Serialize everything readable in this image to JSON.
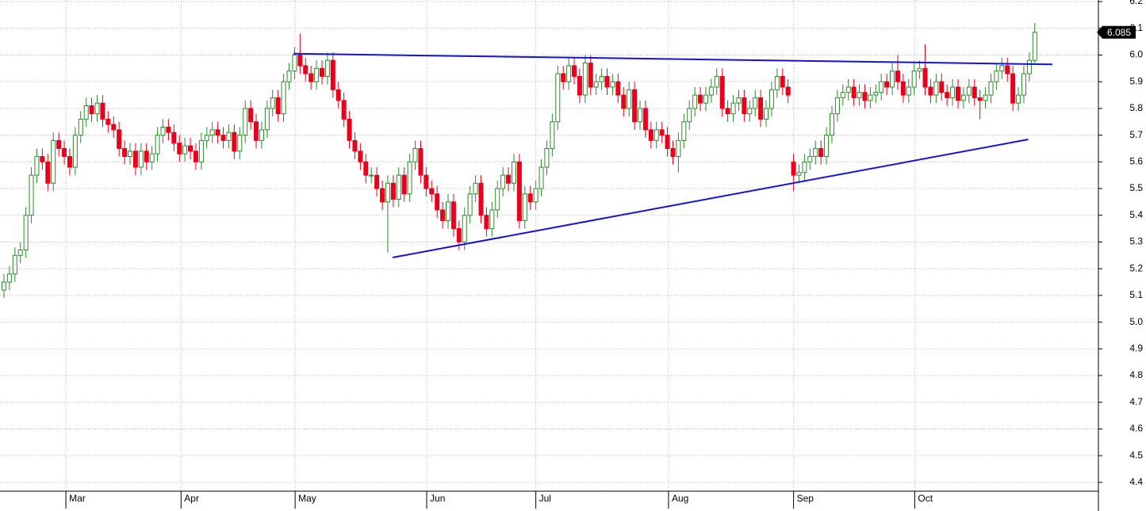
{
  "chart_data": {
    "type": "candlestick",
    "xlim": [
      -0.72,
      199.6
    ],
    "xticks": [
      {
        "value": 11.3,
        "label": "Mar"
      },
      {
        "value": 32.3,
        "label": "Apr"
      },
      {
        "value": 53.1,
        "label": "May"
      },
      {
        "value": 77.1,
        "label": "Jun"
      },
      {
        "value": 97.0,
        "label": "Jul"
      },
      {
        "value": 121.2,
        "label": "Aug"
      },
      {
        "value": 144.0,
        "label": "Sep"
      },
      {
        "value": 166.1,
        "label": "Oct"
      }
    ],
    "ylim": [
      4.367,
      6.206
    ],
    "yticks": [
      4.4,
      4.5,
      4.6,
      4.7,
      4.8,
      4.9,
      {
        "value": 5.0,
        "label": "5.0"
      },
      5.1,
      5.2,
      5.3,
      5.4,
      5.5,
      5.6,
      5.7,
      5.8,
      5.9,
      {
        "value": 6.0,
        "label": "6.0"
      },
      6.1,
      6.2
    ],
    "grid": true,
    "up_color": "#2a8a2a",
    "down_color": "#e8001c",
    "open": [
      5.12,
      5.15,
      5.18,
      5.25,
      5.27,
      5.4,
      5.55,
      5.62,
      5.6,
      5.52,
      5.68,
      5.65,
      5.62,
      5.58,
      5.7,
      5.76,
      5.81,
      5.78,
      5.82,
      5.76,
      5.74,
      5.72,
      5.65,
      5.62,
      5.64,
      5.58,
      5.64,
      5.6,
      5.63,
      5.7,
      5.73,
      5.71,
      5.67,
      5.63,
      5.66,
      5.64,
      5.6,
      5.68,
      5.7,
      5.72,
      5.7,
      5.68,
      5.71,
      5.64,
      5.7,
      5.8,
      5.75,
      5.68,
      5.72,
      5.8,
      5.84,
      5.78,
      5.9,
      5.94,
      6.0,
      5.96,
      5.93,
      5.9,
      5.95,
      5.92,
      5.98,
      5.87,
      5.83,
      5.76,
      5.68,
      5.64,
      5.6,
      5.55,
      5.55,
      5.5,
      5.45,
      5.52,
      5.46,
      5.55,
      5.48,
      5.6,
      5.65,
      5.55,
      5.5,
      5.48,
      5.42,
      5.38,
      5.45,
      5.35,
      5.3,
      5.4,
      5.48,
      5.52,
      5.4,
      5.35,
      5.42,
      5.5,
      5.55,
      5.52,
      5.6,
      5.38,
      5.48,
      5.45,
      5.5,
      5.58,
      5.65,
      5.75,
      5.93,
      5.9,
      5.96,
      5.92,
      5.85,
      5.97,
      5.88,
      5.9,
      5.92,
      5.88,
      5.9,
      5.85,
      5.8,
      5.87,
      5.75,
      5.8,
      5.72,
      5.68,
      5.72,
      5.7,
      5.65,
      5.62,
      5.68,
      5.75,
      5.8,
      5.85,
      5.82,
      5.85,
      5.88,
      5.92,
      5.8,
      5.78,
      5.82,
      5.84,
      5.78,
      5.8,
      5.84,
      5.76,
      5.8,
      5.87,
      5.92,
      5.88,
      5.6,
      5.55,
      5.56,
      5.6,
      5.62,
      5.65,
      5.62,
      5.7,
      5.78,
      5.84,
      5.86,
      5.88,
      5.84,
      5.86,
      5.83,
      5.85,
      5.86,
      5.9,
      5.88,
      5.94,
      5.9,
      5.85,
      5.88,
      5.94,
      5.95,
      5.88,
      5.85,
      5.9,
      5.86,
      5.84,
      5.88,
      5.83,
      5.85,
      5.88,
      5.84,
      5.83,
      5.85,
      5.9,
      5.94,
      5.96,
      5.93,
      5.82,
      5.85,
      5.93,
      5.98
    ],
    "high": [
      5.18,
      5.21,
      5.28,
      5.3,
      5.43,
      5.58,
      5.65,
      5.65,
      5.63,
      5.71,
      5.71,
      5.68,
      5.65,
      5.73,
      5.79,
      5.84,
      5.84,
      5.85,
      5.85,
      5.79,
      5.77,
      5.75,
      5.68,
      5.67,
      5.67,
      5.67,
      5.67,
      5.66,
      5.73,
      5.76,
      5.76,
      5.74,
      5.7,
      5.69,
      5.69,
      5.67,
      5.71,
      5.73,
      5.75,
      5.75,
      5.73,
      5.74,
      5.74,
      5.73,
      5.83,
      5.83,
      5.78,
      5.75,
      5.83,
      5.87,
      5.87,
      5.93,
      5.97,
      6.03,
      6.08,
      5.99,
      5.96,
      5.98,
      5.98,
      6.01,
      6.01,
      5.9,
      5.86,
      5.79,
      5.71,
      5.67,
      5.63,
      5.58,
      5.58,
      5.53,
      5.55,
      5.55,
      5.58,
      5.58,
      5.63,
      5.68,
      5.68,
      5.58,
      5.53,
      5.51,
      5.45,
      5.48,
      5.48,
      5.38,
      5.43,
      5.51,
      5.55,
      5.55,
      5.43,
      5.45,
      5.53,
      5.58,
      5.58,
      5.63,
      5.63,
      5.51,
      5.51,
      5.53,
      5.61,
      5.68,
      5.78,
      5.96,
      5.96,
      5.99,
      5.99,
      5.95,
      6.0,
      6.0,
      5.93,
      5.95,
      5.95,
      5.93,
      5.93,
      5.88,
      5.9,
      5.9,
      5.83,
      5.83,
      5.75,
      5.75,
      5.75,
      5.73,
      5.68,
      5.71,
      5.78,
      5.83,
      5.88,
      5.88,
      5.88,
      5.91,
      5.95,
      5.95,
      5.83,
      5.85,
      5.87,
      5.87,
      5.83,
      5.87,
      5.87,
      5.83,
      5.9,
      5.95,
      5.95,
      5.91,
      5.63,
      5.59,
      5.63,
      5.65,
      5.68,
      5.68,
      5.73,
      5.81,
      5.87,
      5.89,
      5.91,
      5.91,
      5.89,
      5.89,
      5.88,
      5.89,
      5.93,
      5.93,
      5.97,
      6.0,
      5.93,
      5.91,
      5.97,
      5.98,
      6.04,
      5.91,
      5.93,
      5.93,
      5.89,
      5.91,
      5.91,
      5.88,
      5.91,
      5.91,
      5.87,
      5.88,
      5.93,
      5.97,
      5.99,
      5.99,
      5.96,
      5.88,
      5.96,
      6.01,
      6.12
    ],
    "low": [
      5.09,
      5.12,
      5.15,
      5.22,
      5.24,
      5.37,
      5.52,
      5.57,
      5.49,
      5.49,
      5.62,
      5.59,
      5.55,
      5.55,
      5.67,
      5.73,
      5.75,
      5.75,
      5.73,
      5.71,
      5.69,
      5.62,
      5.59,
      5.59,
      5.55,
      5.55,
      5.57,
      5.57,
      5.6,
      5.67,
      5.68,
      5.64,
      5.6,
      5.6,
      5.61,
      5.57,
      5.57,
      5.65,
      5.67,
      5.67,
      5.65,
      5.65,
      5.61,
      5.61,
      5.67,
      5.72,
      5.65,
      5.65,
      5.69,
      5.77,
      5.75,
      5.75,
      5.87,
      5.91,
      5.93,
      5.9,
      5.87,
      5.87,
      5.89,
      5.89,
      5.84,
      5.8,
      5.73,
      5.65,
      5.61,
      5.57,
      5.52,
      5.52,
      5.47,
      5.42,
      5.26,
      5.43,
      5.43,
      5.45,
      5.45,
      5.57,
      5.52,
      5.47,
      5.45,
      5.39,
      5.35,
      5.35,
      5.32,
      5.27,
      5.27,
      5.37,
      5.45,
      5.37,
      5.32,
      5.32,
      5.39,
      5.47,
      5.49,
      5.49,
      5.35,
      5.35,
      5.42,
      5.42,
      5.47,
      5.55,
      5.62,
      5.72,
      5.87,
      5.87,
      5.89,
      5.82,
      5.82,
      5.85,
      5.85,
      5.87,
      5.85,
      5.85,
      5.82,
      5.77,
      5.77,
      5.72,
      5.72,
      5.69,
      5.65,
      5.65,
      5.67,
      5.62,
      5.59,
      5.56,
      5.65,
      5.72,
      5.77,
      5.79,
      5.79,
      5.82,
      5.85,
      5.77,
      5.75,
      5.75,
      5.79,
      5.75,
      5.75,
      5.77,
      5.73,
      5.73,
      5.77,
      5.84,
      5.85,
      5.82,
      5.49,
      5.52,
      5.53,
      5.57,
      5.59,
      5.59,
      5.59,
      5.67,
      5.75,
      5.81,
      5.83,
      5.81,
      5.81,
      5.8,
      5.8,
      5.82,
      5.83,
      5.85,
      5.85,
      5.87,
      5.82,
      5.82,
      5.85,
      5.91,
      5.85,
      5.82,
      5.82,
      5.83,
      5.81,
      5.81,
      5.8,
      5.8,
      5.82,
      5.81,
      5.76,
      5.8,
      5.82,
      5.87,
      5.91,
      5.9,
      5.79,
      5.79,
      5.82,
      5.9,
      5.97
    ],
    "close": [
      5.15,
      5.18,
      5.25,
      5.27,
      5.4,
      5.55,
      5.62,
      5.6,
      5.52,
      5.68,
      5.65,
      5.62,
      5.58,
      5.7,
      5.76,
      5.81,
      5.78,
      5.82,
      5.76,
      5.74,
      5.72,
      5.65,
      5.62,
      5.64,
      5.58,
      5.64,
      5.6,
      5.63,
      5.7,
      5.73,
      5.71,
      5.67,
      5.63,
      5.66,
      5.64,
      5.6,
      5.68,
      5.7,
      5.72,
      5.7,
      5.68,
      5.71,
      5.64,
      5.7,
      5.8,
      5.75,
      5.68,
      5.72,
      5.8,
      5.84,
      5.78,
      5.9,
      5.94,
      6.0,
      5.96,
      5.93,
      5.9,
      5.95,
      5.92,
      5.98,
      5.87,
      5.83,
      5.76,
      5.68,
      5.64,
      5.6,
      5.55,
      5.55,
      5.5,
      5.45,
      5.52,
      5.46,
      5.55,
      5.48,
      5.6,
      5.65,
      5.55,
      5.5,
      5.48,
      5.42,
      5.38,
      5.45,
      5.35,
      5.3,
      5.4,
      5.48,
      5.52,
      5.4,
      5.35,
      5.42,
      5.5,
      5.55,
      5.52,
      5.6,
      5.38,
      5.48,
      5.45,
      5.5,
      5.58,
      5.65,
      5.75,
      5.93,
      5.9,
      5.96,
      5.92,
      5.85,
      5.97,
      5.88,
      5.9,
      5.92,
      5.88,
      5.9,
      5.85,
      5.8,
      5.87,
      5.75,
      5.8,
      5.72,
      5.68,
      5.72,
      5.7,
      5.65,
      5.62,
      5.68,
      5.75,
      5.8,
      5.85,
      5.82,
      5.85,
      5.88,
      5.92,
      5.8,
      5.78,
      5.82,
      5.84,
      5.78,
      5.8,
      5.84,
      5.76,
      5.8,
      5.87,
      5.92,
      5.88,
      5.85,
      5.55,
      5.56,
      5.6,
      5.62,
      5.65,
      5.62,
      5.7,
      5.78,
      5.84,
      5.86,
      5.88,
      5.84,
      5.86,
      5.83,
      5.85,
      5.86,
      5.9,
      5.88,
      5.94,
      5.9,
      5.85,
      5.88,
      5.94,
      5.95,
      5.88,
      5.85,
      5.9,
      5.86,
      5.84,
      5.88,
      5.83,
      5.85,
      5.88,
      5.84,
      5.83,
      5.85,
      5.9,
      5.94,
      5.96,
      5.93,
      5.82,
      5.85,
      5.93,
      5.98,
      6.085
    ],
    "trendlines": [
      {
        "color": "#1414d2",
        "x": [
          52.8,
          191.2
        ],
        "y": [
          6.005,
          5.965
        ]
      },
      {
        "color": "#1414d2",
        "x": [
          70.9,
          186.8
        ],
        "y": [
          5.242,
          5.684
        ]
      }
    ],
    "last_price": {
      "value": 6.085,
      "label": "6.085"
    }
  }
}
